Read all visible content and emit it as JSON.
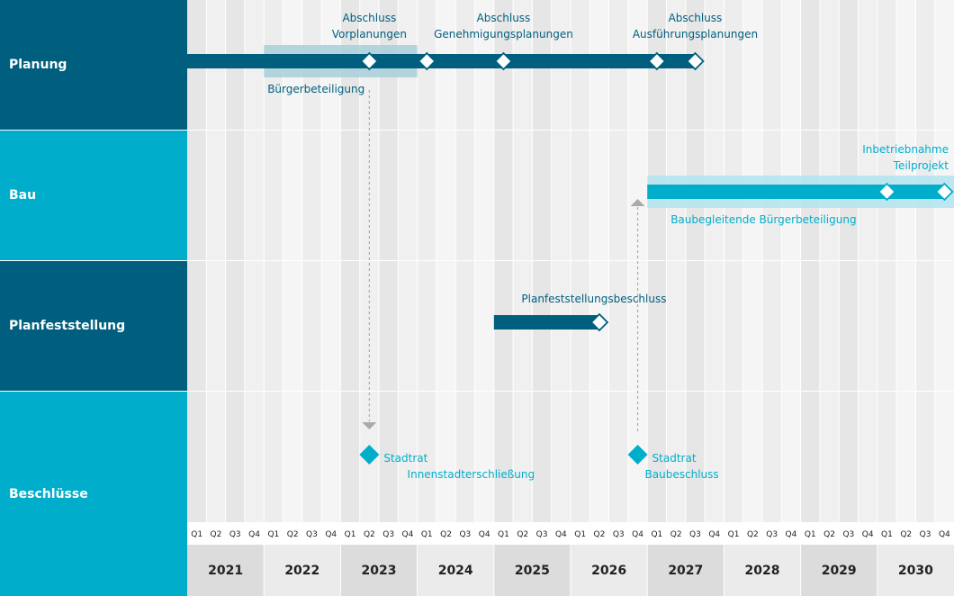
{
  "chart_data": {
    "type": "gantt",
    "rows": [
      "Planung",
      "Bau",
      "Planfeststellung",
      "Beschlüsse"
    ],
    "years": [
      "2021",
      "2022",
      "2023",
      "2024",
      "2025",
      "2026",
      "2027",
      "2028",
      "2029",
      "2030"
    ],
    "quarters": [
      "Q1",
      "Q2",
      "Q3",
      "Q4"
    ],
    "colors": {
      "dark": "#005f7e",
      "light": "#00aecb",
      "dark_band": "#a9cfd9",
      "light_band": "#b3e4ee",
      "arrow": "#aaaaaa"
    },
    "bars": [
      {
        "row": 0,
        "start": "2021-Q1",
        "end": "2027-Q3",
        "color": "dark"
      },
      {
        "row": 2,
        "start": "2025-Q1",
        "end": "2026-Q2",
        "color": "dark"
      },
      {
        "row": 1,
        "start": "2027-Q1",
        "end": "2030-Q4",
        "color": "light"
      }
    ],
    "bands": [
      {
        "row": 0,
        "start": "2022-Q1",
        "end": "2023-Q4",
        "color": "dark_band",
        "label": "Bürgerbeteiligung"
      },
      {
        "row": 1,
        "start": "2027-Q1",
        "end": "2030-Q4",
        "color": "light_band",
        "label": "Baubegleitende Bürgerbeteiligung"
      }
    ],
    "milestones": [
      {
        "row": 0,
        "date": "2023-Q2",
        "label": [
          "Abschluss",
          "Vorplanungen"
        ]
      },
      {
        "row": 0,
        "date": "2024-Q1",
        "label": []
      },
      {
        "row": 0,
        "date": "2025-Q1",
        "label": [
          "Abschluss",
          "Genehmigungsplanungen"
        ]
      },
      {
        "row": 0,
        "date": "2027-Q1",
        "label": []
      },
      {
        "row": 0,
        "date": "2027-Q3",
        "label": [
          "Abschluss",
          "Ausführungsplanungen"
        ]
      },
      {
        "row": 1,
        "date": "2030-Q1",
        "label": [
          "Inbetriebnahme",
          "Teilprojekt"
        ]
      },
      {
        "row": 1,
        "date": "2030-Q4",
        "label": []
      },
      {
        "row": 2,
        "date": "2026-Q2",
        "label": [
          "Planfeststellungsbeschluss"
        ]
      }
    ],
    "decisions": [
      {
        "date": "2023-Q2",
        "label": [
          "Stadtrat",
          "Innenstadterschließung"
        ]
      },
      {
        "date": "2026-Q4",
        "label": [
          "Stadtrat",
          "Baubeschluss"
        ]
      }
    ],
    "arrows": [
      {
        "date": "2023-Q2",
        "direction": "down"
      },
      {
        "date": "2026-Q4",
        "direction": "up"
      }
    ]
  }
}
